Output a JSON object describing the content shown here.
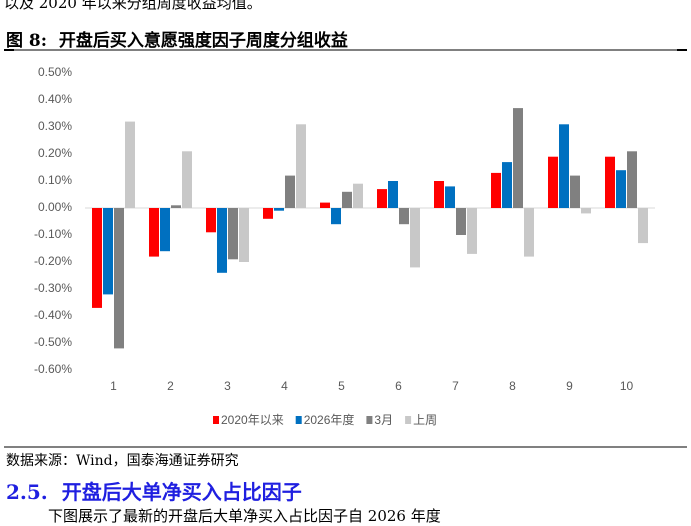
{
  "intro_text": "以及 2020 年以来分组周度收益均值。",
  "figure": {
    "number": "图 8:",
    "title": "开盘后买入意愿强度因子周度分组收益"
  },
  "chart_data": {
    "type": "bar",
    "categories": [
      "1",
      "2",
      "3",
      "4",
      "5",
      "6",
      "7",
      "8",
      "9",
      "10"
    ],
    "series": [
      {
        "name": "2020年以来",
        "color": "#ff0000",
        "values": [
          -0.37,
          -0.18,
          -0.09,
          -0.04,
          0.02,
          0.07,
          0.1,
          0.13,
          0.19,
          0.19
        ]
      },
      {
        "name": "2026年度",
        "color": "#0070c0",
        "values": [
          -0.32,
          -0.16,
          -0.24,
          -0.01,
          -0.06,
          0.1,
          0.08,
          0.17,
          0.31,
          0.14
        ]
      },
      {
        "name": "3月",
        "color": "#808080",
        "values": [
          -0.52,
          0.01,
          -0.19,
          0.12,
          0.06,
          -0.06,
          -0.1,
          0.37,
          0.12,
          0.21
        ]
      },
      {
        "name": "上周",
        "color": "#c8c8c8",
        "values": [
          0.32,
          0.21,
          -0.2,
          0.31,
          0.09,
          -0.22,
          -0.17,
          -0.18,
          -0.02,
          -0.13
        ]
      }
    ],
    "ylim": [
      -0.6,
      0.5
    ],
    "yticks": [
      {
        "value": 0.5,
        "label": "0.50%"
      },
      {
        "value": 0.4,
        "label": "0.40%"
      },
      {
        "value": 0.3,
        "label": "0.30%"
      },
      {
        "value": 0.2,
        "label": "0.20%"
      },
      {
        "value": 0.1,
        "label": "0.10%"
      },
      {
        "value": 0,
        "label": "0.00%"
      },
      {
        "value": -0.1,
        "label": "-0.10%"
      },
      {
        "value": -0.2,
        "label": "-0.20%"
      },
      {
        "value": -0.3,
        "label": "-0.30%"
      },
      {
        "value": -0.4,
        "label": "-0.40%"
      },
      {
        "value": -0.5,
        "label": "-0.50%"
      },
      {
        "value": -0.6,
        "label": "-0.60%"
      }
    ],
    "legend": "bottom"
  },
  "source": "数据来源：Wind，国泰海通证券研究",
  "section": {
    "number": "2.5.",
    "title": "开盘后大单净买入占比因子"
  },
  "body_text": "下图展示了最新的开盘后大单净买入占比因子自 2026 年度"
}
